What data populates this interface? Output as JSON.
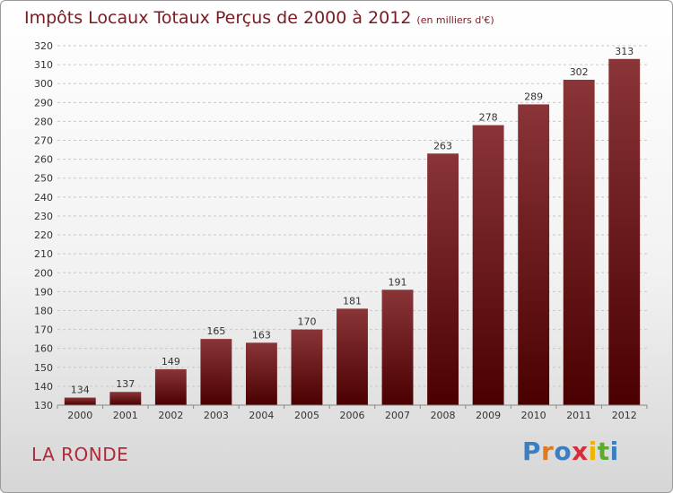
{
  "header": {
    "title": "Impôts Locaux Totaux Perçus de 2000 à 2012",
    "unit": "(en milliers d'€)"
  },
  "footer": {
    "place": "LA RONDE",
    "logo": "Proxiti"
  },
  "colors": {
    "bar_top": "#8a3538",
    "bar_bottom": "#4a0000",
    "grid": "#c8c8c8",
    "title": "#7a1a22"
  },
  "chart_data": {
    "type": "bar",
    "title": "Impôts Locaux Totaux Perçus de 2000 à 2012",
    "subtitle": "(en milliers d'€)",
    "xlabel": "",
    "ylabel": "",
    "categories": [
      "2000",
      "2001",
      "2002",
      "2003",
      "2004",
      "2005",
      "2006",
      "2007",
      "2008",
      "2009",
      "2010",
      "2011",
      "2012"
    ],
    "values": [
      134,
      137,
      149,
      165,
      163,
      170,
      181,
      191,
      263,
      278,
      289,
      302,
      313
    ],
    "ylim": [
      130,
      320
    ],
    "yticks": [
      130,
      140,
      150,
      160,
      170,
      180,
      190,
      200,
      210,
      220,
      230,
      240,
      250,
      260,
      270,
      280,
      290,
      300,
      310,
      320
    ],
    "grid": true,
    "data_labels": true
  }
}
